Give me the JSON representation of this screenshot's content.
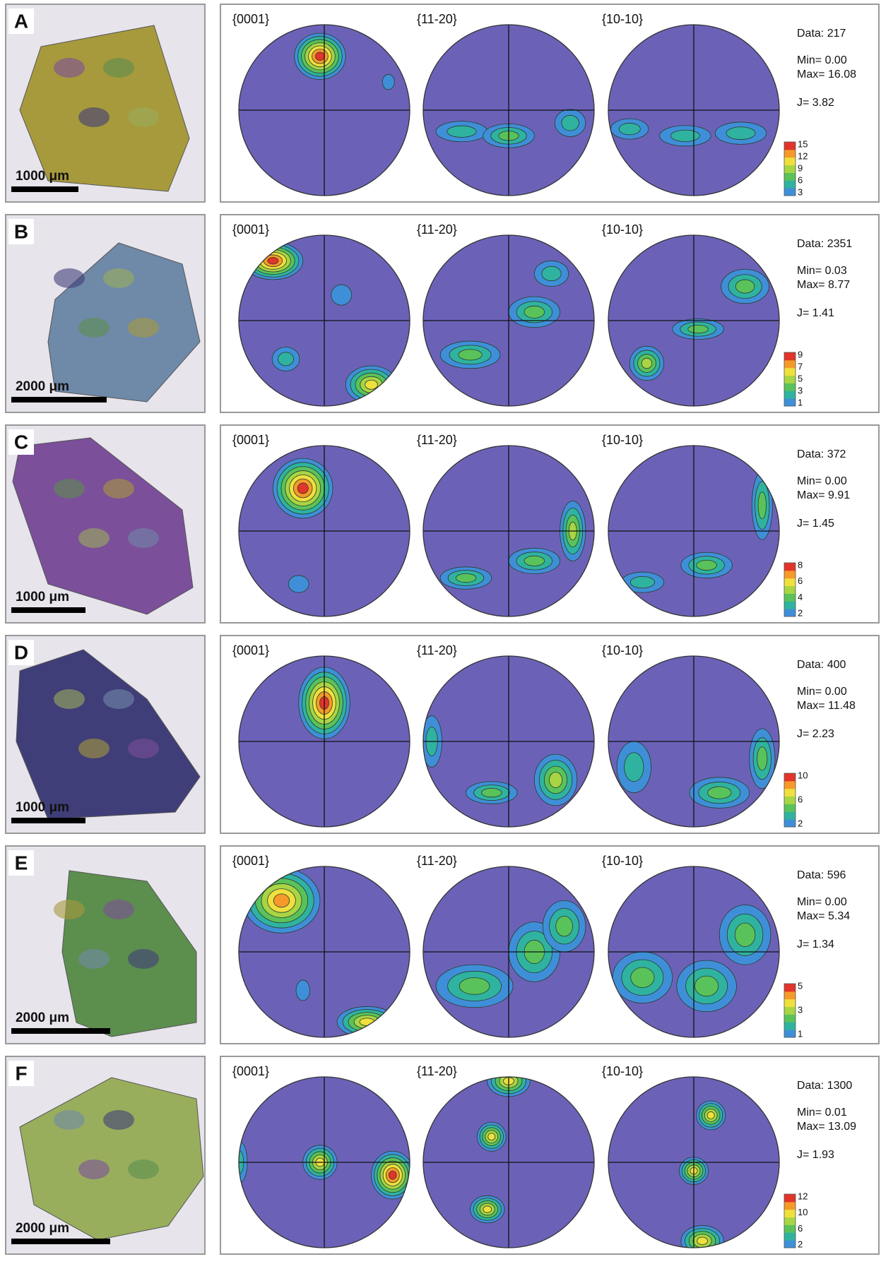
{
  "panels": [
    {
      "label": "A",
      "scale_bar": "1000 μm",
      "pole_figures": [
        "{0001}",
        "{11-20}",
        "{10-10}"
      ],
      "stats": {
        "data": "Data: 217",
        "min": "Min=   0.00",
        "max": "Max= 16.08",
        "j": "J= 3.82"
      },
      "colorbar_ticks": [
        15,
        12,
        9,
        6,
        3
      ]
    },
    {
      "label": "B",
      "scale_bar": "2000 μm",
      "pole_figures": [
        "{0001}",
        "{11-20}",
        "{10-10}"
      ],
      "stats": {
        "data": "Data: 2351",
        "min": "Min=  0.03",
        "max": "Max= 8.77",
        "j": "J= 1.41"
      },
      "colorbar_ticks": [
        9,
        7,
        5,
        3,
        1
      ]
    },
    {
      "label": "C",
      "scale_bar": "1000 μm",
      "pole_figures": [
        "{0001}",
        "{11-20}",
        "{10-10}"
      ],
      "stats": {
        "data": "Data: 372",
        "min": "Min=  0.00",
        "max": "Max= 9.91",
        "j": "J= 1.45"
      },
      "colorbar_ticks": [
        8,
        6,
        4,
        2
      ]
    },
    {
      "label": "D",
      "scale_bar": "1000 μm",
      "pole_figures": [
        "{0001}",
        "{11-20}",
        "{10-10}"
      ],
      "stats": {
        "data": "Data: 400",
        "min": "Min=   0.00",
        "max": "Max= 11.48",
        "j": "J= 2.23"
      },
      "colorbar_ticks": [
        10,
        6,
        2
      ]
    },
    {
      "label": "E",
      "scale_bar": "2000 μm",
      "pole_figures": [
        "{0001}",
        "{11-20}",
        "{10-10}"
      ],
      "stats": {
        "data": "Data: 596",
        "min": "Min=  0.00",
        "max": "Max= 5.34",
        "j": "J= 1.34"
      },
      "colorbar_ticks": [
        5,
        3,
        1
      ]
    },
    {
      "label": "F",
      "scale_bar": "2000 μm",
      "pole_figures": [
        "{0001}",
        "{11-20}",
        "{10-10}"
      ],
      "stats": {
        "data": "Data: 1300",
        "min": "Min= 0.01",
        "max": "Max= 13.09",
        "j": "J= 1.93"
      },
      "colorbar_ticks": [
        12,
        10,
        6,
        2
      ]
    }
  ]
}
